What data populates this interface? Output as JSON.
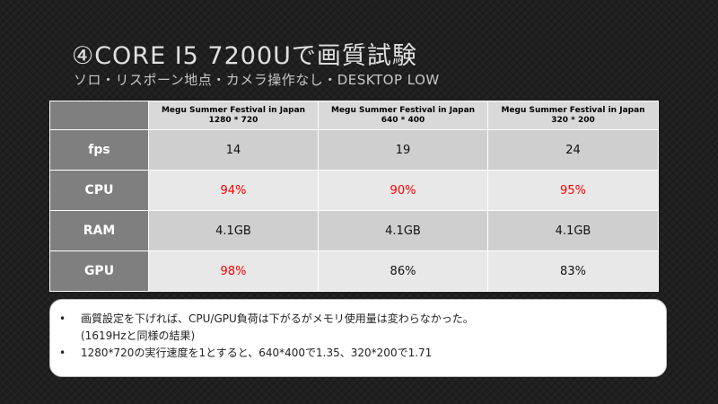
{
  "slide": {
    "title": "④CORE I5 7200Uで画質試験",
    "subtitle": "ソロ・リスポーン地点・カメラ操作なし・DESKTOP LOW"
  },
  "table": {
    "corner": "",
    "columns": [
      {
        "name": "Megu Summer Festival in Japan",
        "resolution": "1280 * 720"
      },
      {
        "name": "Megu Summer Festival in Japan",
        "resolution": "640 * 400"
      },
      {
        "name": "Megu Summer Festival in Japan",
        "resolution": "320 * 200"
      }
    ],
    "rows": [
      {
        "label": "fps",
        "values": [
          "14",
          "19",
          "24"
        ],
        "highlight": [
          false,
          false,
          false
        ]
      },
      {
        "label": "CPU",
        "values": [
          "94%",
          "90%",
          "95%"
        ],
        "highlight": [
          true,
          true,
          true
        ]
      },
      {
        "label": "RAM",
        "values": [
          "4.1GB",
          "4.1GB",
          "4.1GB"
        ],
        "highlight": [
          false,
          false,
          false
        ]
      },
      {
        "label": "GPU",
        "values": [
          "98%",
          "86%",
          "83%"
        ],
        "highlight": [
          true,
          false,
          false
        ]
      }
    ]
  },
  "notes": {
    "bullet": "•",
    "items": [
      {
        "line1": "画質設定を下げれば、CPU/GPU負荷は下がるがメモリ使用量は変わらなかった。",
        "line2": "(1619Hzと同様の結果)"
      },
      {
        "line1": "1280*720の実行速度を1とすると、640*400で1.35、320*200で1.71",
        "line2": ""
      }
    ]
  },
  "colors": {
    "background": "#1f1f1f",
    "header_cell": "#d9d9d9",
    "row_label_cell": "#7f7f7f",
    "row_odd": "#cfcfcf",
    "row_even": "#e8e8e8",
    "highlight_text": "#ff0000"
  }
}
